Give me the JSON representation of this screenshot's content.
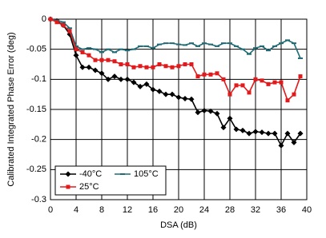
{
  "chart_data": {
    "type": "line",
    "xlabel": "DSA (dB)",
    "ylabel": "Calibrated Integrated Phase Error (deg)",
    "x": [
      0,
      1,
      2,
      3,
      4,
      5,
      6,
      7,
      8,
      9,
      10,
      11,
      12,
      13,
      14,
      15,
      16,
      17,
      18,
      19,
      20,
      21,
      22,
      23,
      24,
      25,
      26,
      27,
      28,
      29,
      30,
      31,
      32,
      33,
      34,
      35,
      36,
      37,
      38,
      39
    ],
    "series": [
      {
        "name": "-40°C",
        "color": "#000000",
        "marker": "diamond",
        "values": [
          0,
          -0.003,
          -0.01,
          -0.025,
          -0.06,
          -0.08,
          -0.08,
          -0.085,
          -0.09,
          -0.1,
          -0.095,
          -0.1,
          -0.1,
          -0.105,
          -0.112,
          -0.108,
          -0.117,
          -0.12,
          -0.125,
          -0.125,
          -0.13,
          -0.132,
          -0.133,
          -0.155,
          -0.152,
          -0.153,
          -0.157,
          -0.18,
          -0.165,
          -0.183,
          -0.185,
          -0.19,
          -0.187,
          -0.188,
          -0.19,
          -0.19,
          -0.21,
          -0.19,
          -0.205,
          -0.19
        ]
      },
      {
        "name": "105°C",
        "color": "#1f6b75",
        "marker": "dash",
        "values": [
          0,
          -0.002,
          -0.005,
          -0.015,
          -0.045,
          -0.05,
          -0.048,
          -0.05,
          -0.055,
          -0.05,
          -0.055,
          -0.05,
          -0.052,
          -0.05,
          -0.045,
          -0.045,
          -0.048,
          -0.042,
          -0.04,
          -0.04,
          -0.042,
          -0.043,
          -0.04,
          -0.045,
          -0.04,
          -0.042,
          -0.045,
          -0.04,
          -0.04,
          -0.045,
          -0.05,
          -0.058,
          -0.048,
          -0.045,
          -0.052,
          -0.045,
          -0.04,
          -0.035,
          -0.04,
          -0.065
        ]
      },
      {
        "name": "25°C",
        "color": "#e31a1c",
        "marker": "square",
        "values": [
          0,
          -0.005,
          -0.01,
          -0.02,
          -0.05,
          -0.055,
          -0.06,
          -0.068,
          -0.068,
          -0.068,
          -0.07,
          -0.075,
          -0.075,
          -0.08,
          -0.078,
          -0.08,
          -0.08,
          -0.075,
          -0.078,
          -0.08,
          -0.078,
          -0.075,
          -0.075,
          -0.095,
          -0.092,
          -0.092,
          -0.09,
          -0.1,
          -0.125,
          -0.11,
          -0.11,
          -0.122,
          -0.1,
          -0.102,
          -0.108,
          -0.105,
          -0.105,
          -0.135,
          -0.125,
          -0.095
        ]
      }
    ],
    "xlim": [
      0,
      40
    ],
    "xticks": [
      0,
      4,
      8,
      12,
      16,
      20,
      24,
      28,
      32,
      36,
      40
    ],
    "ylim": [
      -0.3,
      0
    ],
    "yticks": [
      0,
      -0.05,
      -0.1,
      -0.15,
      -0.2,
      -0.25,
      -0.3
    ],
    "grid": true,
    "legend": "lower left"
  }
}
